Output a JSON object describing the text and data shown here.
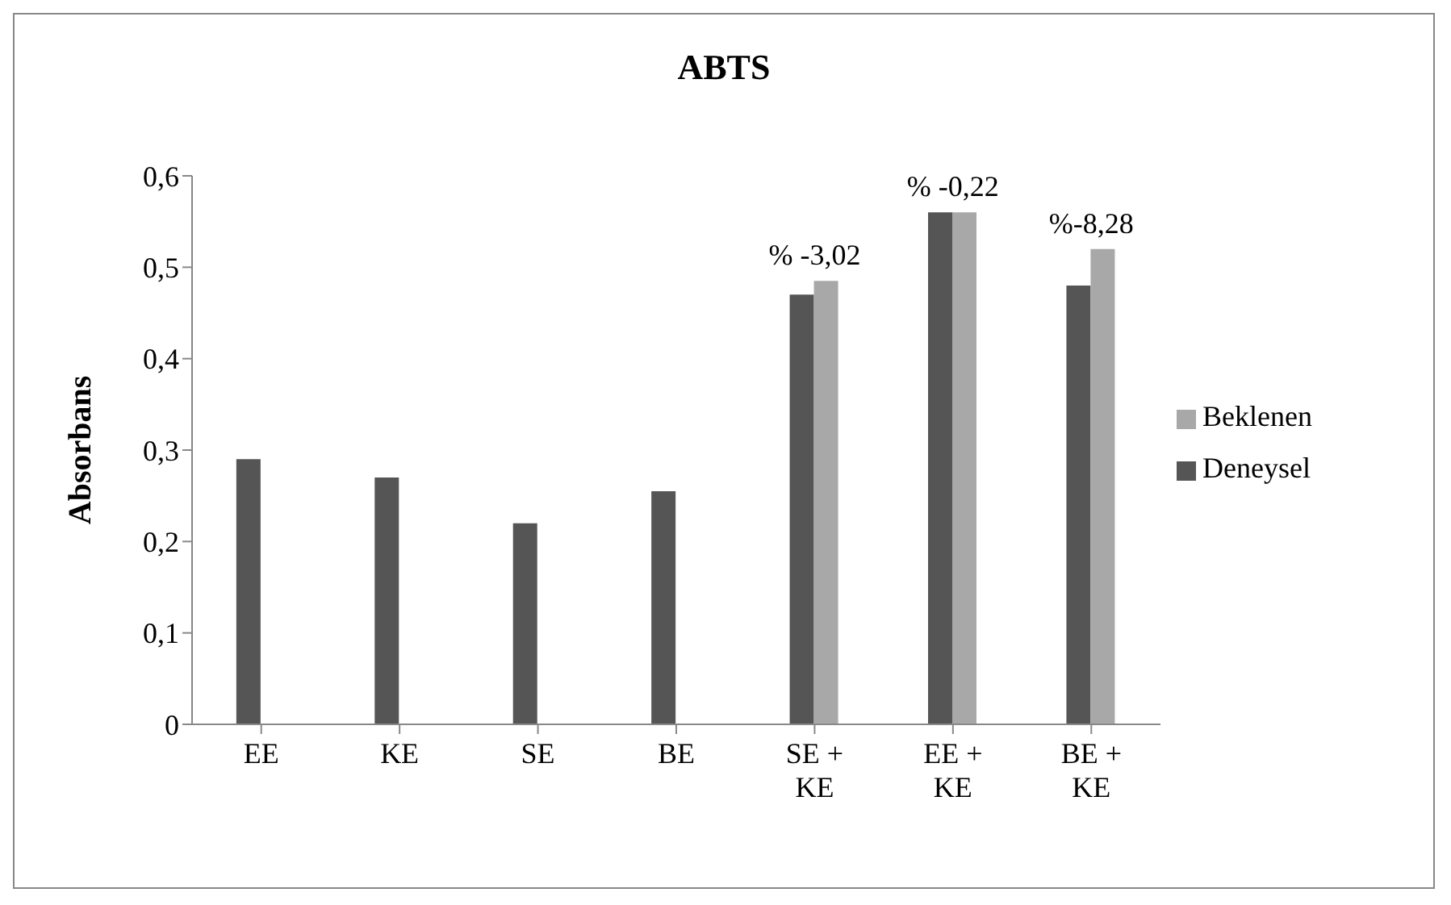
{
  "chart_data": {
    "type": "bar",
    "title": "ABTS",
    "ylabel": "Absorbans",
    "categories": [
      "EE",
      "KE",
      "SE",
      "BE",
      "SE + KE",
      "EE + KE",
      "BE + KE"
    ],
    "series": [
      {
        "name": "Deneysel",
        "color": "#555555",
        "values": [
          0.29,
          0.27,
          0.22,
          0.255,
          0.47,
          0.56,
          0.48
        ]
      },
      {
        "name": "Beklenen",
        "color": "#a8a8a8",
        "values": [
          null,
          null,
          null,
          null,
          0.485,
          0.56,
          0.52
        ]
      }
    ],
    "ylim": [
      0,
      0.6
    ],
    "yticks": [
      {
        "value": 0,
        "label": "0"
      },
      {
        "value": 0.1,
        "label": "0,1"
      },
      {
        "value": 0.2,
        "label": "0,2"
      },
      {
        "value": 0.3,
        "label": "0,3"
      },
      {
        "value": 0.4,
        "label": "0,4"
      },
      {
        "value": 0.5,
        "label": "0,5"
      },
      {
        "value": 0.6,
        "label": "0,6"
      }
    ],
    "grid": false,
    "legend": "right",
    "annotations": [
      {
        "text": "% -3,02",
        "x": "SE + KE",
        "y": 0.485
      },
      {
        "text": "% -0,22",
        "x": "EE + KE",
        "y": 0.56
      },
      {
        "text": "%-8,28",
        "x": "BE + KE",
        "y": 0.52
      }
    ]
  }
}
